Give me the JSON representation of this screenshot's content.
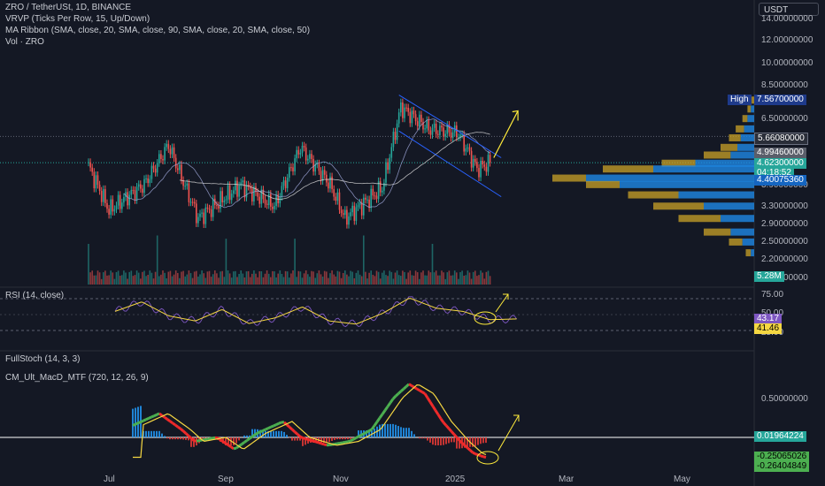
{
  "header": {
    "symbol_line": "ZRO / TetherUSt, 1D, BINANCE",
    "vrvp": "VRVP (Ticks Per Row, 15, Up/Down)",
    "ma_ribbon": "MA Ribbon (SMA, close, 20, SMA, close, 90, SMA, close, 20, SMA, close, 50)",
    "vol": "Vol · ZRO"
  },
  "currency_button": "USDT",
  "indicators": {
    "rsi": "RSI (14, close)",
    "stoch": "FullStoch (14, 3, 3)",
    "macd": "CM_Ult_MacD_MTF (720, 12, 26, 9)"
  },
  "colors": {
    "background": "#141824",
    "up_candle": "#26a69a",
    "down_candle": "#ef5350",
    "channel": "#2962ff",
    "arrow": "#ffeb3b",
    "profile_up": "#1e88e5",
    "profile_down": "#c9a227",
    "rsi_line": "#7e57c2",
    "rsi_ma": "#f5d742",
    "macd_up": "#4caf50",
    "macd_down": "#ef2a2a",
    "signal": "#f5d742"
  },
  "price_axis": {
    "scale": "log",
    "ticks": [
      "14.00000000",
      "12.00000000",
      "10.00000000",
      "8.50000000",
      "6.50000000",
      "3.90000000",
      "3.30000000",
      "2.90000000",
      "2.50000000",
      "2.20000000",
      "1.90000000"
    ]
  },
  "price_labels": {
    "high_tag": "High",
    "high_value": "7.56700000",
    "line_value": "5.66080000",
    "partial_value": "4.99460000",
    "last_price": "4.62300000",
    "countdown": "04:18:52",
    "poc_value": "4.40075360",
    "volume": "5.28M"
  },
  "rsi_axis": {
    "ticks": [
      "75.00",
      "50.00",
      "25.00"
    ],
    "rsi_value": "43.17",
    "ma_value": "41.46"
  },
  "macd_axis": {
    "ticks": [
      "0.50000000"
    ],
    "zero_value": "0.01964224",
    "val1": "-0.25065026",
    "val2": "-0.26404849"
  },
  "time_axis": [
    "Jul",
    "Sep",
    "Nov",
    "2025",
    "Mar",
    "May"
  ],
  "chart_data": {
    "type": "candlestick",
    "title": "ZRO / TetherUS, 1D, BINANCE",
    "x_range": [
      "2024-06-20",
      "2025-02-01"
    ],
    "y_scale": "log",
    "y_range_visible": [
      1.9,
      14.0
    ],
    "keypoints": [
      {
        "date": "2024-06-20",
        "close": 4.5
      },
      {
        "date": "2024-07-01",
        "close": 3.2
      },
      {
        "date": "2024-07-20",
        "close": 3.9
      },
      {
        "date": "2024-08-02",
        "close": 5.3
      },
      {
        "date": "2024-08-18",
        "close": 3.0
      },
      {
        "date": "2024-09-10",
        "close": 3.9
      },
      {
        "date": "2024-09-28",
        "close": 3.3
      },
      {
        "date": "2024-10-12",
        "close": 5.2
      },
      {
        "date": "2024-10-28",
        "close": 3.9
      },
      {
        "date": "2024-11-05",
        "close": 3.0
      },
      {
        "date": "2024-11-25",
        "close": 3.8
      },
      {
        "date": "2024-12-05",
        "close": 7.1
      },
      {
        "date": "2024-12-20",
        "close": 6.0
      },
      {
        "date": "2025-01-05",
        "close": 5.8
      },
      {
        "date": "2025-01-15",
        "close": 4.4
      },
      {
        "date": "2025-01-22",
        "close": 4.62
      }
    ],
    "rsi": {
      "values_sample": [
        55,
        70,
        48,
        40,
        58,
        36,
        45,
        62,
        40,
        35,
        52,
        76,
        60,
        55,
        42,
        43.17
      ],
      "ma_last": 41.46
    },
    "macd": {
      "last_macd": -0.25065026,
      "last_signal": -0.26404849,
      "hist_last": 0.01964224
    },
    "annotations": [
      "High 7.56700000",
      "Descending channel",
      "Breakout arrow"
    ]
  }
}
